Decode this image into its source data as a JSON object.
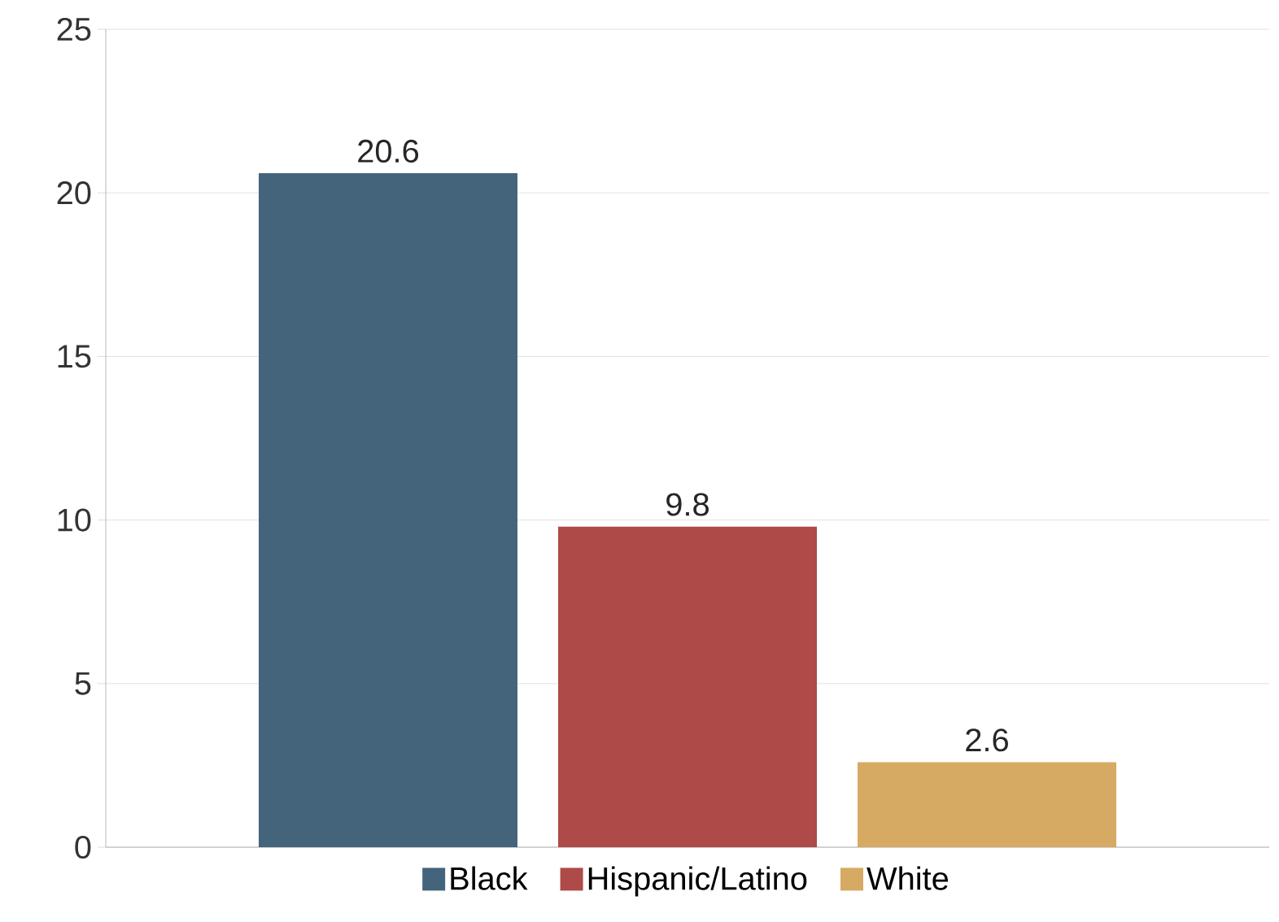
{
  "chart_data": {
    "type": "bar",
    "categories": [
      null
    ],
    "series": [
      {
        "name": "Black",
        "color": "#44647c",
        "values": [
          20.6
        ]
      },
      {
        "name": "Hispanic/Latino",
        "color": "#ae4a47",
        "values": [
          9.8
        ]
      },
      {
        "name": "White",
        "color": "#d6aa62",
        "values": [
          2.6
        ]
      }
    ],
    "ylim": [
      0,
      25
    ],
    "yticks": [
      0,
      5,
      10,
      15,
      20,
      25
    ],
    "grid": "y",
    "legend": "bottom",
    "data_labels": true
  }
}
